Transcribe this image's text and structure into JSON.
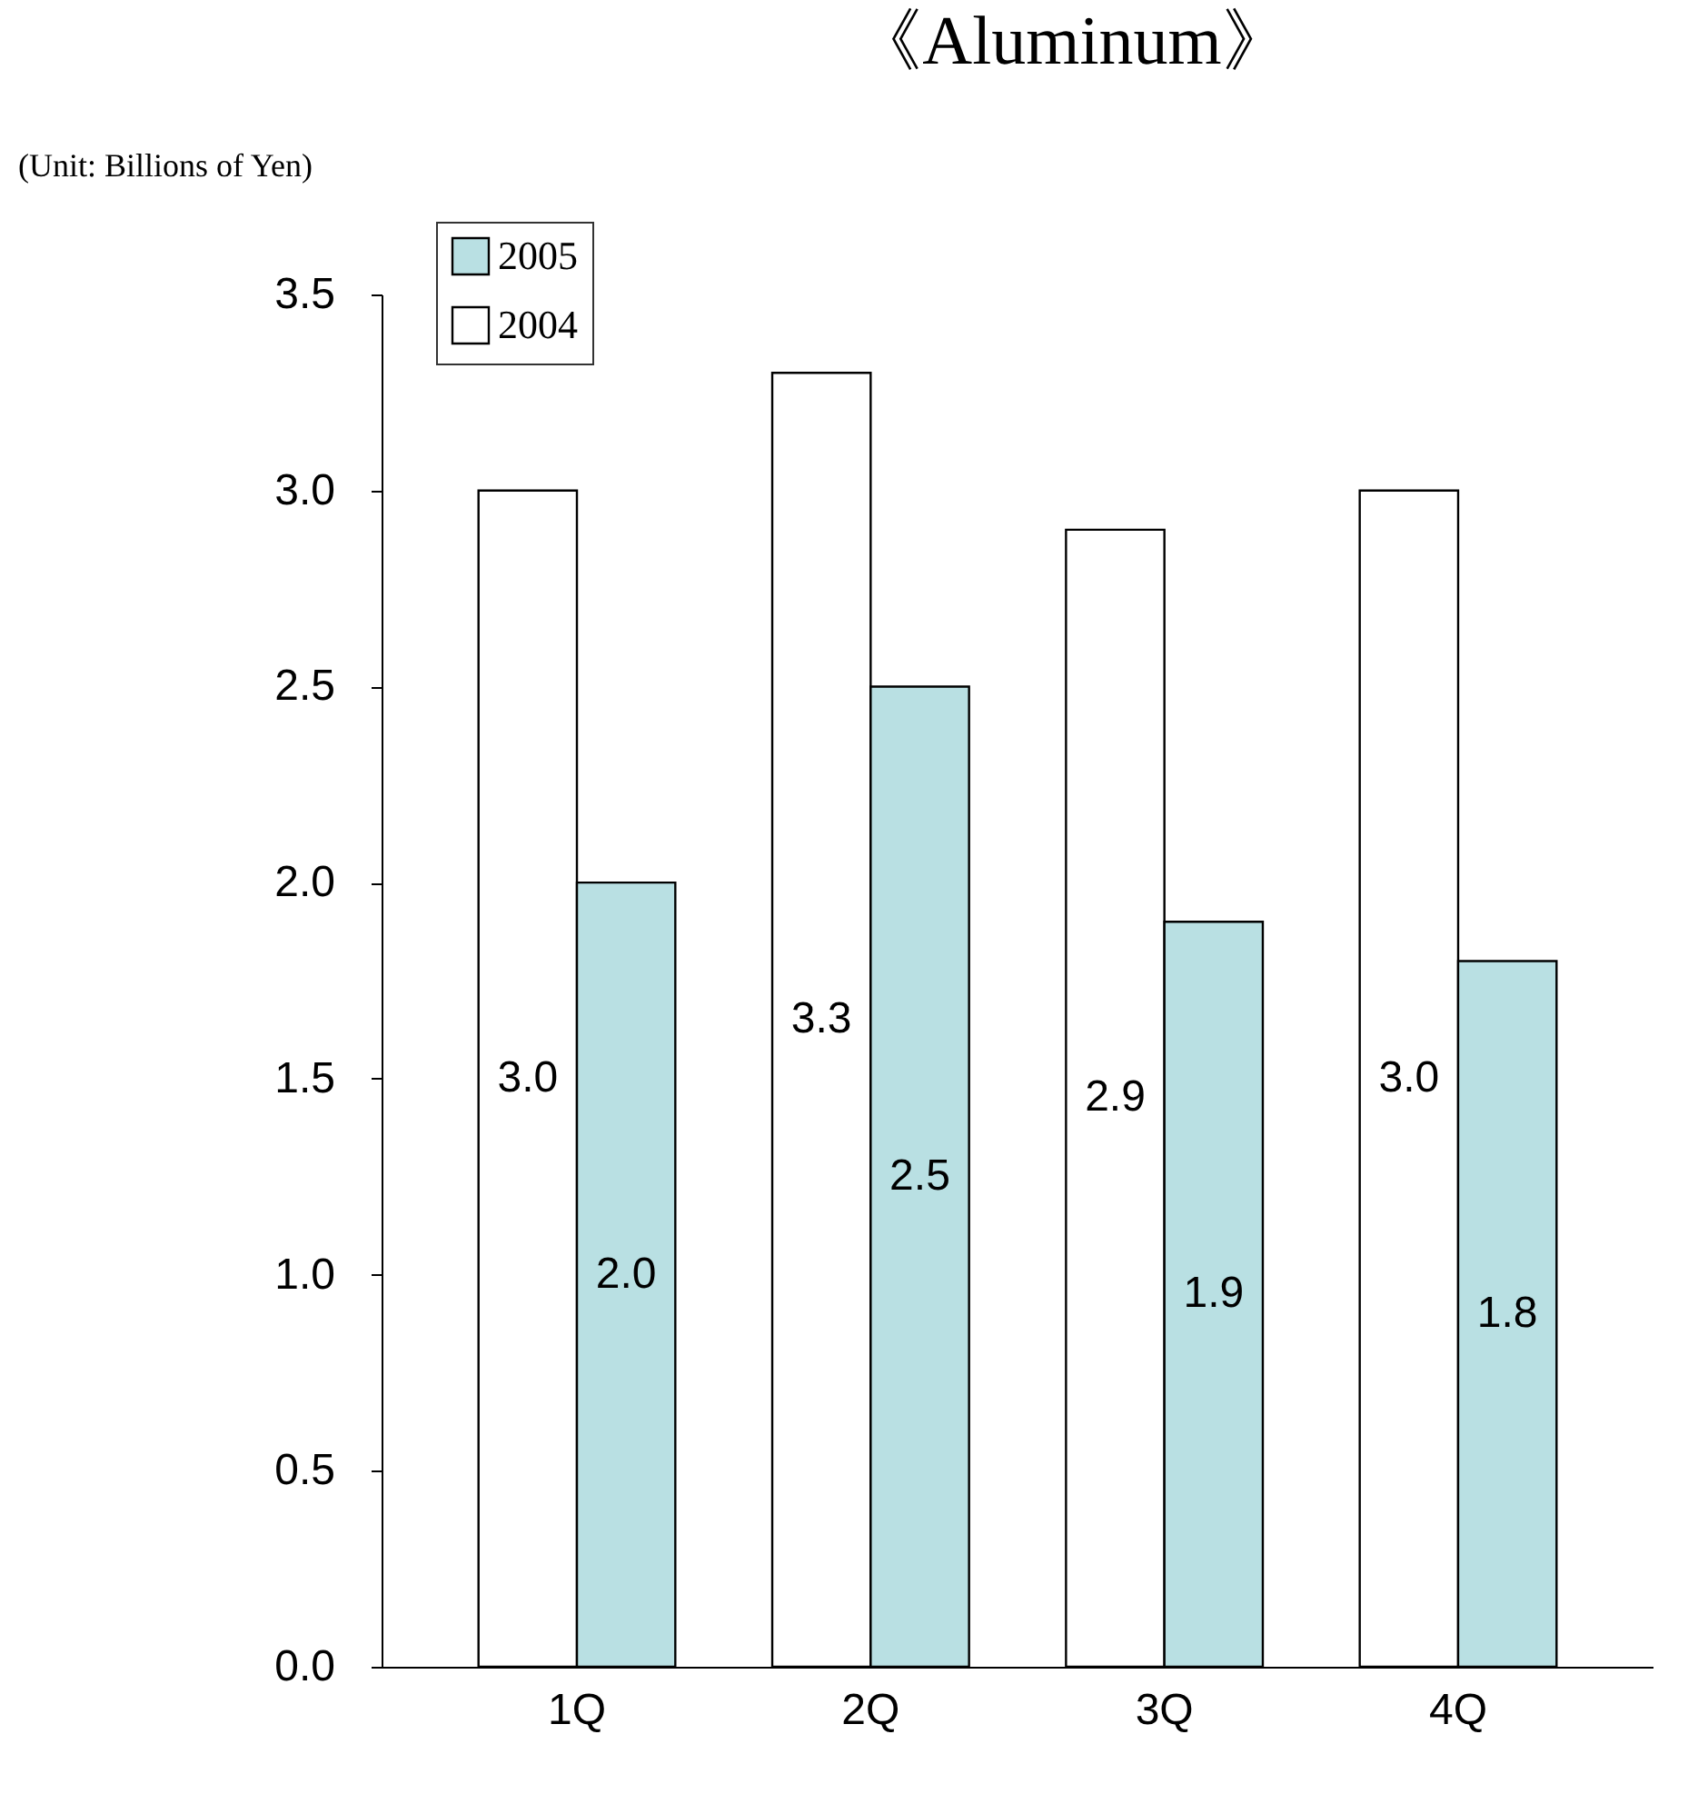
{
  "chart_data": {
    "type": "bar",
    "title": "《Aluminum》",
    "annotations": [
      "(Unit: Billions of Yen)"
    ],
    "categories": [
      "1Q",
      "2Q",
      "3Q",
      "4Q"
    ],
    "series": [
      {
        "name": "2004",
        "color": "#ffffff",
        "values": [
          3.0,
          3.3,
          2.9,
          3.0
        ],
        "value_labels": [
          "3.0",
          "3.3",
          "2.9",
          "3.0"
        ]
      },
      {
        "name": "2005",
        "color": "#b9e0e3",
        "values": [
          2.0,
          2.5,
          1.9,
          1.8
        ],
        "value_labels": [
          "2.0",
          "2.5",
          "1.9",
          "1.8"
        ]
      }
    ],
    "ylim": [
      0,
      3.5
    ],
    "yticks": [
      {
        "value": 0,
        "label": "0.0"
      },
      0.5,
      {
        "value": 1,
        "label": "1.0"
      },
      1.5,
      {
        "value": 2,
        "label": "2.0"
      },
      2.5,
      {
        "value": 3,
        "label": "3.0"
      },
      3.5
    ],
    "grid": false,
    "legend": "top left"
  }
}
